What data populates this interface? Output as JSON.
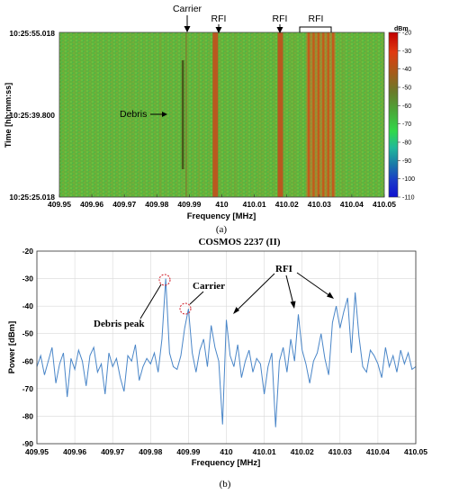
{
  "panel_a": {
    "caption": "(a)",
    "ylabel": "Time [hh:mm:ss]",
    "xlabel": "Frequency [MHz]",
    "time_ticks": [
      "10:25:55.018",
      "10:25:39.800",
      "10:25:25.018"
    ],
    "colorbar_unit": "dBm",
    "annotations": {
      "carrier": "Carrier",
      "rfi1": "RFI",
      "rfi2": "RFI",
      "rfi3": "RFI",
      "debris": "Debris"
    }
  },
  "panel_b": {
    "caption": "(b)",
    "annotations": {
      "debris_peak": "Debris peak",
      "carrier": "Carrier",
      "rfi": "RFI"
    }
  },
  "colors": {
    "line": "#4a86c8",
    "grid": "#d9d9d9",
    "circle": "#d0202a",
    "axis_bg": "#ffffff",
    "waterfall_base": "#5fb33c"
  },
  "chart_data": [
    {
      "type": "heatmap",
      "title": "",
      "xlabel": "Frequency [MHz]",
      "ylabel": "Time [hh:mm:ss]",
      "xlim": [
        409.95,
        410.05
      ],
      "x_ticks": [
        409.95,
        409.96,
        409.97,
        409.98,
        409.99,
        410,
        410.01,
        410.02,
        410.03,
        410.04,
        410.05
      ],
      "y_ticks": [
        "10:25:55.018",
        "10:25:39.800",
        "10:25:25.018"
      ],
      "colorbar": {
        "unit": "dBm",
        "min": -110,
        "max": -20,
        "ticks": [
          -20,
          -30,
          -40,
          -50,
          -60,
          -70,
          -80,
          -90,
          -100,
          -110
        ]
      },
      "features": [
        {
          "label": "Carrier",
          "freq": 409.989
        },
        {
          "label": "RFI",
          "freq": 409.998
        },
        {
          "label": "RFI",
          "freq": 410.018
        },
        {
          "label": "RFI",
          "freq_range": [
            410.026,
            410.035
          ]
        },
        {
          "label": "Debris",
          "freq": 409.988,
          "time_range": [
            "10:25:30",
            "10:25:51"
          ]
        }
      ]
    },
    {
      "type": "line",
      "title": "COSMOS 2237 (II)",
      "xlabel": "Frequency [MHz]",
      "ylabel": "Power [dBm]",
      "xlim": [
        409.95,
        410.05
      ],
      "ylim": [
        -90,
        -20
      ],
      "x_ticks": [
        409.95,
        409.96,
        409.97,
        409.98,
        409.99,
        410,
        410.01,
        410.02,
        410.03,
        410.04,
        410.05
      ],
      "y_ticks": [
        -20,
        -30,
        -40,
        -50,
        -60,
        -70,
        -80,
        -90
      ],
      "grid": true,
      "series": [
        {
          "x": [
            409.95,
            409.951,
            409.952,
            409.953,
            409.954,
            409.955,
            409.956,
            409.957,
            409.958,
            409.959,
            409.96,
            409.961,
            409.962,
            409.963,
            409.964,
            409.965,
            409.966,
            409.967,
            409.968,
            409.969,
            409.97,
            409.971,
            409.972,
            409.973,
            409.974,
            409.975,
            409.976,
            409.977,
            409.978,
            409.979,
            409.98,
            409.981,
            409.982,
            409.983,
            409.984,
            409.985,
            409.986,
            409.987,
            409.988,
            409.989,
            409.99,
            409.991,
            409.992,
            409.993,
            409.994,
            409.995,
            409.996,
            409.997,
            409.998,
            409.999,
            410.0,
            410.001,
            410.002,
            410.003,
            410.004,
            410.005,
            410.006,
            410.007,
            410.008,
            410.009,
            410.01,
            410.011,
            410.012,
            410.013,
            410.014,
            410.015,
            410.016,
            410.017,
            410.018,
            410.019,
            410.02,
            410.021,
            410.022,
            410.023,
            410.024,
            410.025,
            410.026,
            410.027,
            410.028,
            410.029,
            410.03,
            410.031,
            410.032,
            410.033,
            410.034,
            410.035,
            410.036,
            410.037,
            410.038,
            410.039,
            410.04,
            410.041,
            410.042,
            410.043,
            410.044,
            410.045,
            410.046,
            410.047,
            410.048,
            410.049,
            410.05
          ],
          "values": [
            -62,
            -58,
            -65,
            -60,
            -55,
            -68,
            -61,
            -57,
            -73,
            -59,
            -63,
            -56,
            -60,
            -69,
            -58,
            -55,
            -64,
            -61,
            -72,
            -57,
            -62,
            -59,
            -66,
            -71,
            -58,
            -60,
            -54,
            -67,
            -62,
            -59,
            -61,
            -57,
            -64,
            -52,
            -30,
            -57,
            -62,
            -63,
            -58,
            -48,
            -41,
            -57,
            -64,
            -56,
            -52,
            -62,
            -47,
            -55,
            -60,
            -83,
            -45,
            -58,
            -62,
            -54,
            -66,
            -60,
            -56,
            -64,
            -59,
            -61,
            -72,
            -62,
            -57,
            -84,
            -60,
            -55,
            -64,
            -52,
            -60,
            -43,
            -56,
            -61,
            -68,
            -60,
            -57,
            -50,
            -59,
            -65,
            -46,
            -40,
            -48,
            -42,
            -37,
            -57,
            -35,
            -51,
            -62,
            -64,
            -56,
            -58,
            -61,
            -66,
            -55,
            -62,
            -58,
            -64,
            -56,
            -61,
            -57,
            -63,
            -62
          ]
        }
      ],
      "annotations": [
        "Debris peak",
        "Carrier",
        "RFI"
      ]
    }
  ]
}
